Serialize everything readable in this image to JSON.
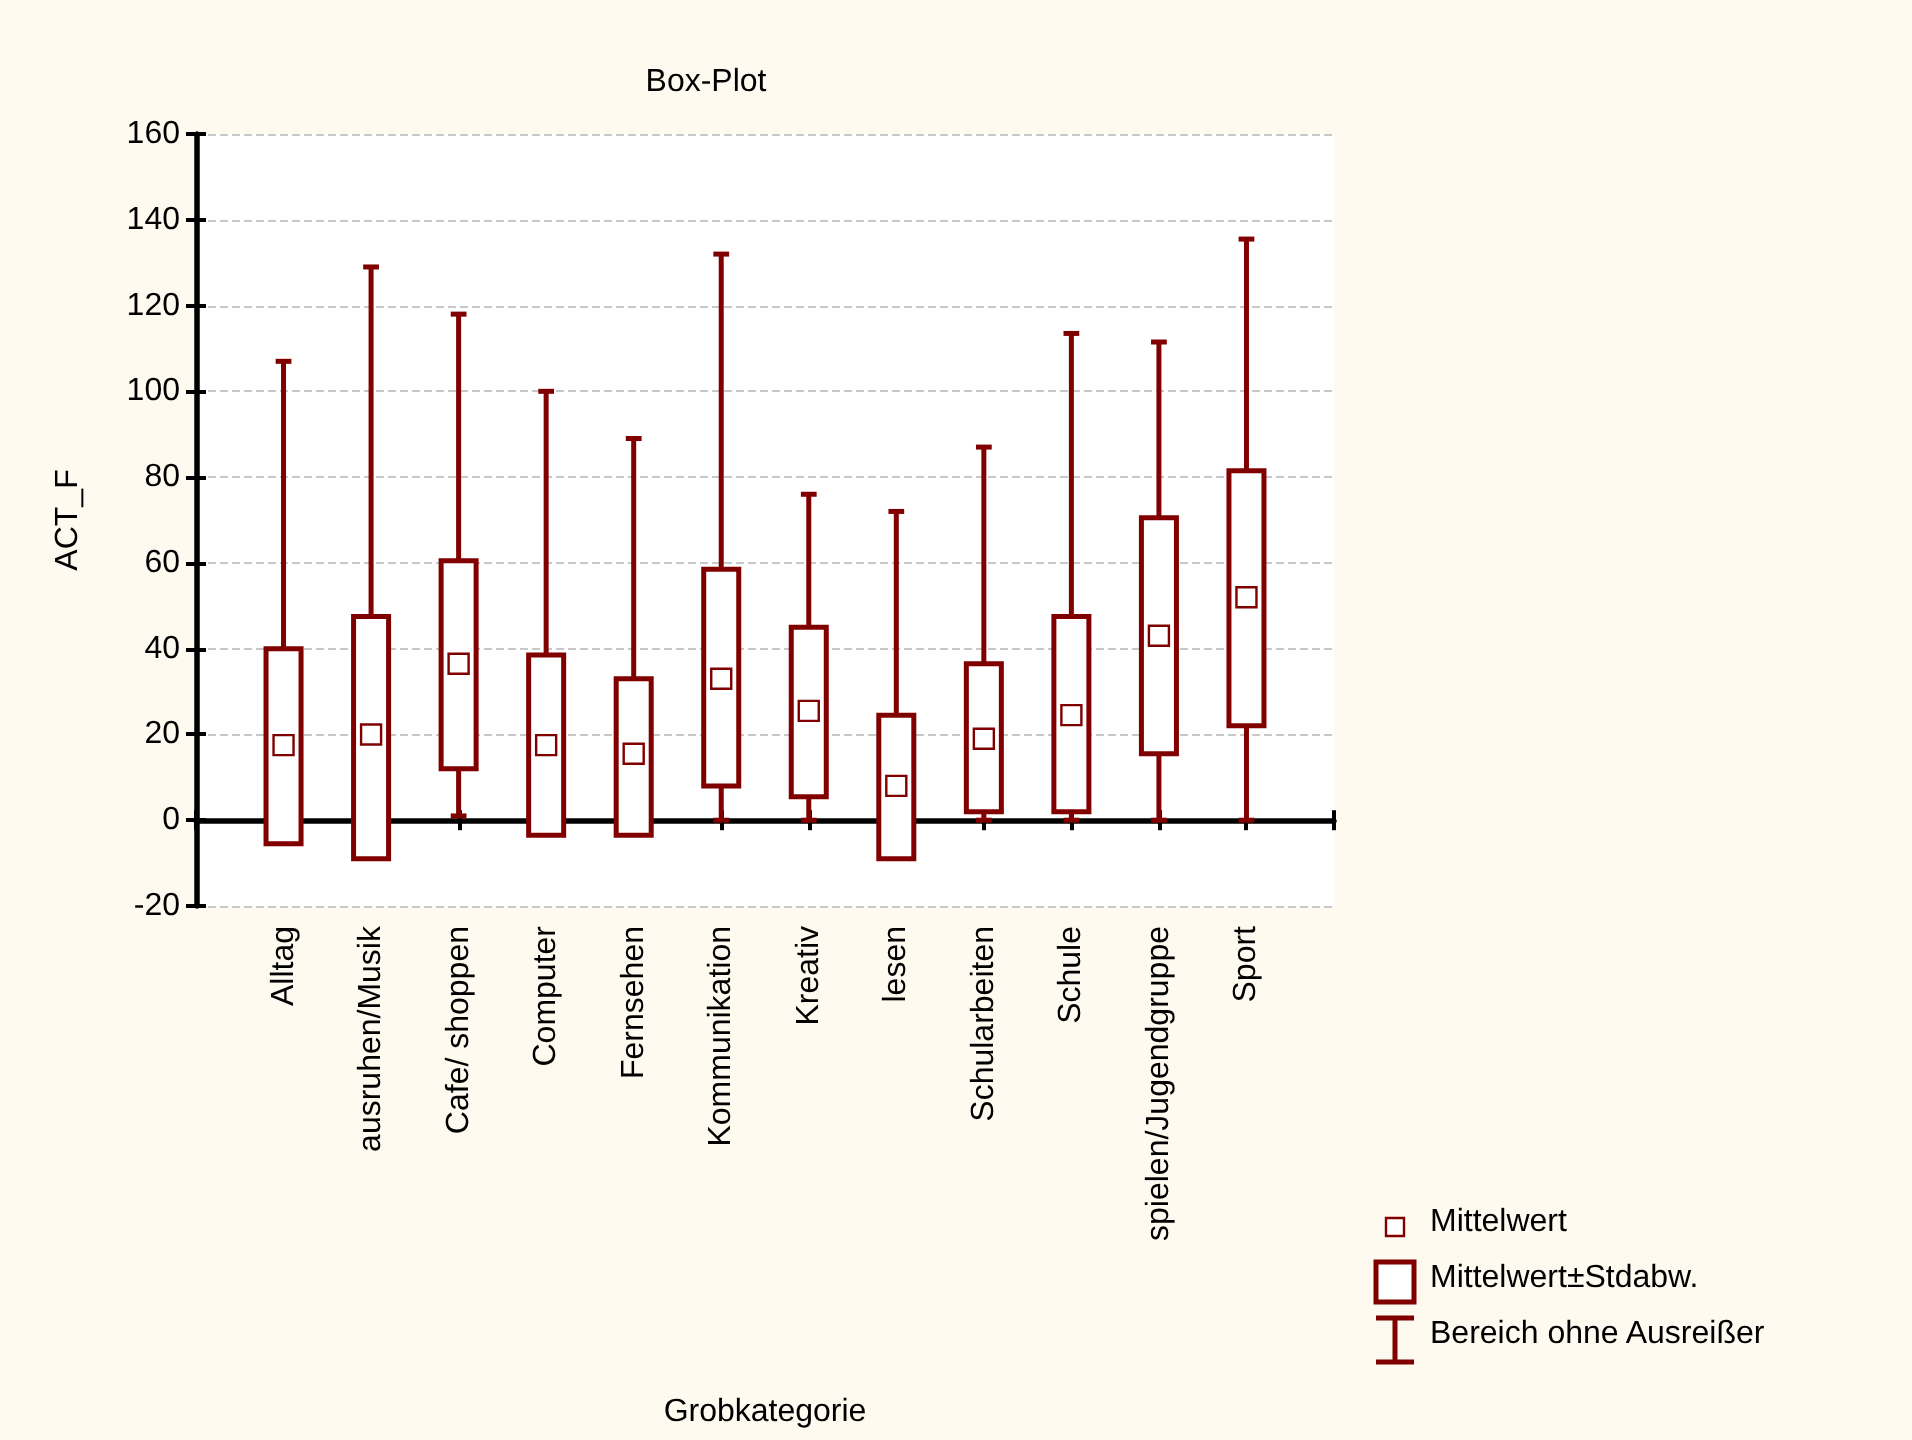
{
  "chart_data": {
    "type": "box",
    "title": "Box-Plot",
    "xlabel": "Grobkategorie",
    "ylabel": "ACT_F",
    "categories": [
      "Alltag",
      "ausruhen/Musik",
      "Cafe/ shoppen",
      "Computer",
      "Fernsehen",
      "Kommunikation",
      "Kreativ",
      "lesen",
      "Schularbeiten",
      "Schule",
      "spielen/Jugendgruppe",
      "Sport"
    ],
    "series": [
      {
        "color": "#800000",
        "boxes": [
          {
            "low": -5.5,
            "q1": -5.5,
            "median": 17.5,
            "q3": 40,
            "high": 107
          },
          {
            "low": -9,
            "q1": -9,
            "median": 20,
            "q3": 47.5,
            "high": 129
          },
          {
            "low": 1,
            "q1": 12,
            "median": 36.5,
            "q3": 60.5,
            "high": 118
          },
          {
            "low": -3.5,
            "q1": -3.5,
            "median": 17.5,
            "q3": 38.5,
            "high": 100
          },
          {
            "low": -3.5,
            "q1": -3.5,
            "median": 15.5,
            "q3": 33,
            "high": 89
          },
          {
            "low": 0,
            "q1": 8,
            "median": 33,
            "q3": 58.5,
            "high": 132
          },
          {
            "low": 0,
            "q1": 5.5,
            "median": 25.5,
            "q3": 45,
            "high": 76
          },
          {
            "low": -9,
            "q1": -9,
            "median": 8,
            "q3": 24.5,
            "high": 72
          },
          {
            "low": 0,
            "q1": 2,
            "median": 19,
            "q3": 36.5,
            "high": 87
          },
          {
            "low": 0,
            "q1": 2,
            "median": 24.5,
            "q3": 47.5,
            "high": 113.5
          },
          {
            "low": 0,
            "q1": 15.5,
            "median": 43,
            "q3": 70.5,
            "high": 111.5
          },
          {
            "low": 0,
            "q1": 22,
            "median": 52,
            "q3": 81.5,
            "high": 135.5
          }
        ]
      }
    ],
    "ylim": [
      -20,
      160
    ],
    "yticks": [
      -20,
      0,
      20,
      40,
      60,
      80,
      100,
      120,
      140,
      160
    ],
    "grid": "y",
    "annotations": [
      "Mittelwert",
      "Mittelwert±Stdabw.",
      "Bereich ohne Ausreißer"
    ]
  }
}
